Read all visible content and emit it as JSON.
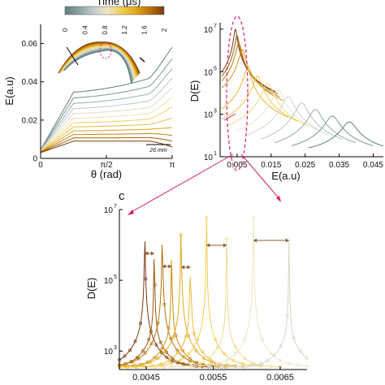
{
  "colorbar": {
    "title": "Time (μs)",
    "ticks": [
      "0",
      "0.4",
      "0.8",
      "1.2",
      "1.6",
      "2"
    ],
    "colors": [
      "#5f7f7f",
      "#8aa3a3",
      "#c4cccc",
      "#eee7c6",
      "#f2cc50",
      "#e0a81a",
      "#b9710e",
      "#7a3a10"
    ]
  },
  "inset": {
    "scale_label": "26 mm"
  },
  "panel_c_label": "c",
  "chart_data": [
    {
      "type": "line",
      "panel": "a",
      "xlabel": "θ (rad)",
      "ylabel": "E(a.u)",
      "xlim": [
        0,
        3.1416
      ],
      "ylim": [
        0,
        0.07
      ],
      "xtick_labels": [
        "0",
        "π/2",
        "π"
      ],
      "ytick_labels": [
        "0",
        "0.02",
        "0.04",
        "0.06"
      ],
      "grid": false,
      "series_summary": "energy vs angle curves colored by time from 0 to 2 μs",
      "curve_endpoints_right": [
        0.058,
        0.052,
        0.047,
        0.042,
        0.037,
        0.032,
        0.027,
        0.021,
        0.016,
        0.012,
        0.009,
        0.006
      ]
    },
    {
      "type": "line",
      "panel": "b",
      "xlabel": "E(a.u)",
      "ylabel": "D(E)",
      "xlim": [
        0,
        0.048
      ],
      "ylim": [
        10,
        20000000
      ],
      "yscale": "log",
      "xtick_labels": [
        "0.005",
        "0.015",
        "0.025",
        "0.035",
        "0.045"
      ],
      "ytick_labels": [
        "10",
        "10",
        "10",
        "10"
      ],
      "ytick_exponents": [
        "1",
        "3",
        "5",
        "7"
      ],
      "grid": false,
      "peak_positions": [
        0.0045,
        0.005,
        0.0055,
        0.0065,
        0.008,
        0.011,
        0.014,
        0.017,
        0.02,
        0.024,
        0.028,
        0.033,
        0.038
      ]
    },
    {
      "type": "line",
      "panel": "c",
      "xlabel": "",
      "ylabel": "D(E)",
      "xlim": [
        0.0041,
        0.0069
      ],
      "ylim": [
        300,
        10000000
      ],
      "yscale": "log",
      "xtick_labels": [
        "0.0045",
        "0.0055",
        "0.0065"
      ],
      "ytick_labels": [
        "10",
        "10",
        "10"
      ],
      "ytick_exponents": [
        "3",
        "5",
        "7"
      ],
      "grid": false,
      "peak_positions": [
        0.00448,
        0.00462,
        0.00474,
        0.00488,
        0.00502,
        0.00516,
        0.0054,
        0.0057,
        0.0061,
        0.00663
      ]
    }
  ]
}
